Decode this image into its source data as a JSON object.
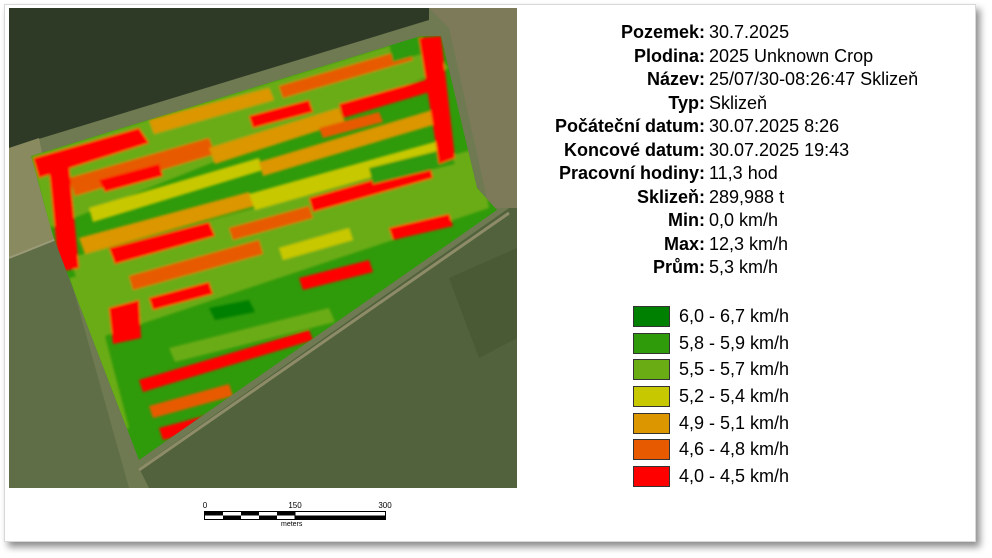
{
  "info": [
    {
      "label": "Pozemek:",
      "value": "30.7.2025"
    },
    {
      "label": "Plodina:",
      "value": "2025 Unknown Crop"
    },
    {
      "label": "Název:",
      "value": "25/07/30-08:26:47 Sklizeň"
    },
    {
      "label": "Typ:",
      "value": "Sklizeň"
    },
    {
      "label": "Počáteční datum:",
      "value": "30.07.2025 8:26"
    },
    {
      "label": "Koncové datum:",
      "value": "30.07.2025 19:43"
    },
    {
      "label": "Pracovní hodiny:",
      "value": "11,3 hod"
    },
    {
      "label": "Sklizeň:",
      "value": "289,988 t"
    },
    {
      "label": "Min:",
      "value": "0,0 km/h"
    },
    {
      "label": "Max:",
      "value": "12,3 km/h"
    },
    {
      "label": "Prům:",
      "value": "5,3 km/h"
    }
  ],
  "legend": [
    {
      "label": "6,0 - 6,7 km/h",
      "color": "#008000"
    },
    {
      "label": "5,8 - 5,9 km/h",
      "color": "#2f9a0a"
    },
    {
      "label": "5,5 - 5,7 km/h",
      "color": "#6aac14"
    },
    {
      "label": "5,2 - 5,4 km/h",
      "color": "#c8c800"
    },
    {
      "label": "4,9 - 5,1 km/h",
      "color": "#dc9600"
    },
    {
      "label": "4,6 - 4,8 km/h",
      "color": "#e85a00"
    },
    {
      "label": "4,0 - 4,5 km/h",
      "color": "#ff0000"
    }
  ],
  "scale": {
    "ticks": [
      "0",
      "150",
      "300"
    ],
    "unit": "meters"
  }
}
